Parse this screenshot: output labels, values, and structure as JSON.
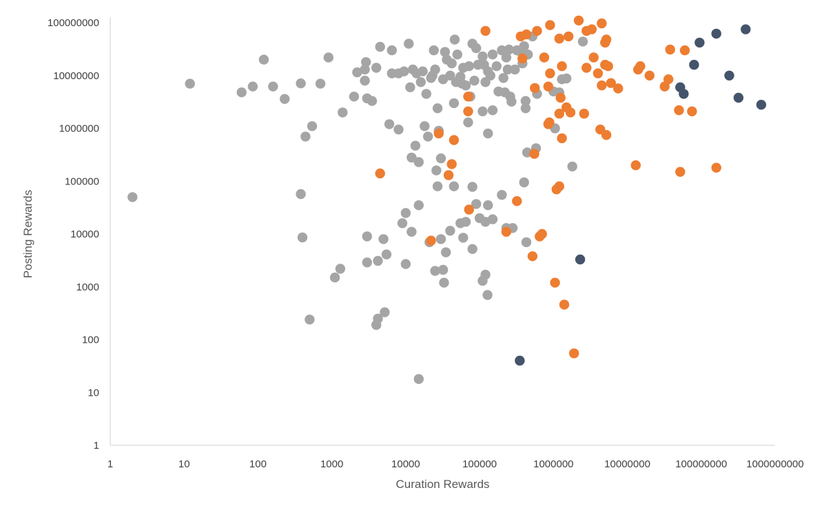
{
  "chart_data": {
    "type": "scatter",
    "title": "",
    "xlabel": "Curation Rewards",
    "ylabel": "Posting Rewards",
    "x_scale": "log",
    "y_scale": "log",
    "xlim": [
      1,
      1000000000
    ],
    "ylim": [
      1,
      100000000
    ],
    "x_ticks": [
      "1",
      "10",
      "100",
      "1000",
      "10000",
      "100000",
      "1000000",
      "10000000",
      "100000000",
      "1000000000"
    ],
    "y_ticks": [
      "1",
      "10",
      "100",
      "1000",
      "10000",
      "100000",
      "1000000",
      "10000000",
      "100000000"
    ],
    "grid": false,
    "legend": "none",
    "series": [
      {
        "color": "#a5a5a5",
        "points": [
          [
            2,
            50000
          ],
          [
            12,
            7000000
          ],
          [
            60,
            4800000
          ],
          [
            85,
            6200000
          ],
          [
            120,
            20000000
          ],
          [
            160,
            6200000
          ],
          [
            230,
            3600000
          ],
          [
            380,
            7100000
          ],
          [
            380,
            57000
          ],
          [
            400,
            8600
          ],
          [
            440,
            700000
          ],
          [
            540,
            1100000
          ],
          [
            700,
            7000000
          ],
          [
            900,
            22000000
          ],
          [
            1400,
            2000000
          ],
          [
            2000,
            4000000
          ],
          [
            2200,
            11500000
          ],
          [
            2800,
            8000000
          ],
          [
            2800,
            13000000
          ],
          [
            2900,
            18000000
          ],
          [
            3000,
            3700000
          ],
          [
            3500,
            3300000
          ],
          [
            4000,
            14000000
          ],
          [
            4500,
            35000000
          ],
          [
            6000,
            1200000
          ],
          [
            6500,
            30000000
          ],
          [
            6500,
            11000000
          ],
          [
            8000,
            950000
          ],
          [
            8000,
            11000000
          ],
          [
            9500,
            12000000
          ],
          [
            11000,
            40000000
          ],
          [
            11500,
            6000000
          ],
          [
            12000,
            280000
          ],
          [
            12500,
            13000000
          ],
          [
            13500,
            470000
          ],
          [
            14000,
            11000000
          ],
          [
            15000,
            230000
          ],
          [
            16000,
            7500000
          ],
          [
            17000,
            12000000
          ],
          [
            18000,
            1100000
          ],
          [
            19000,
            4500000
          ],
          [
            20000,
            700000
          ],
          [
            22000,
            9000000
          ],
          [
            23000,
            10000000
          ],
          [
            24000,
            30000000
          ],
          [
            25000,
            13000000
          ],
          [
            26000,
            160000
          ],
          [
            27000,
            2400000
          ],
          [
            28000,
            900000
          ],
          [
            30000,
            270000
          ],
          [
            32000,
            8500000
          ],
          [
            34000,
            28000000
          ],
          [
            36000,
            20000000
          ],
          [
            40000,
            10000000
          ],
          [
            42000,
            17000000
          ],
          [
            45000,
            3000000
          ],
          [
            46000,
            48000000
          ],
          [
            48000,
            7500000
          ],
          [
            50000,
            25000000
          ],
          [
            55000,
            9500000
          ],
          [
            58000,
            7000000
          ],
          [
            60000,
            14000000
          ],
          [
            65000,
            6500000
          ],
          [
            70000,
            1300000
          ],
          [
            72000,
            15000000
          ],
          [
            75000,
            4000000
          ],
          [
            80000,
            40000000
          ],
          [
            85000,
            8000000
          ],
          [
            90000,
            33000000
          ],
          [
            95000,
            16000000
          ],
          [
            110000,
            23000000
          ],
          [
            110000,
            2100000
          ],
          [
            115000,
            16000000
          ],
          [
            120000,
            7500000
          ],
          [
            130000,
            12000000
          ],
          [
            130000,
            800000
          ],
          [
            140000,
            10000000
          ],
          [
            150000,
            2200000
          ],
          [
            150000,
            25000000
          ],
          [
            170000,
            15000000
          ],
          [
            180000,
            5000000
          ],
          [
            200000,
            30000000
          ],
          [
            210000,
            9000000
          ],
          [
            220000,
            4800000
          ],
          [
            230000,
            22000000
          ],
          [
            240000,
            13000000
          ],
          [
            250000,
            31000000
          ],
          [
            260000,
            4000000
          ],
          [
            270000,
            3200000
          ],
          [
            300000,
            13000000
          ],
          [
            320000,
            30000000
          ],
          [
            350000,
            29000000
          ],
          [
            380000,
            17000000
          ],
          [
            400000,
            36000000
          ],
          [
            420000,
            3300000
          ],
          [
            420000,
            2400000
          ],
          [
            440000,
            350000
          ],
          [
            450000,
            25000000
          ],
          [
            520000,
            55000000
          ],
          [
            580000,
            420000
          ],
          [
            600000,
            4500000
          ],
          [
            1000000,
            5000000
          ],
          [
            1050000,
            1000000
          ],
          [
            1200000,
            4800000
          ],
          [
            1300000,
            8500000
          ],
          [
            1500000,
            8800000
          ],
          [
            1800000,
            190000
          ],
          [
            2500000,
            44000000
          ],
          [
            400000,
            95000
          ],
          [
            15000,
            35000
          ],
          [
            9000,
            16000
          ],
          [
            10000,
            25000
          ],
          [
            12000,
            11000
          ],
          [
            21000,
            7000
          ],
          [
            30000,
            8000
          ],
          [
            40000,
            11500
          ],
          [
            45000,
            80000
          ],
          [
            55000,
            16000
          ],
          [
            60000,
            8500
          ],
          [
            65000,
            17000
          ],
          [
            80000,
            78000
          ],
          [
            90000,
            37000
          ],
          [
            100000,
            20000
          ],
          [
            120000,
            17000
          ],
          [
            130000,
            35000
          ],
          [
            150000,
            19000
          ],
          [
            200000,
            55000
          ],
          [
            230000,
            13000
          ],
          [
            280000,
            13000
          ],
          [
            430000,
            7000
          ],
          [
            3000,
            9000
          ],
          [
            5000,
            8000
          ],
          [
            3000,
            2900
          ],
          [
            4200,
            3100
          ],
          [
            5500,
            4100
          ],
          [
            10000,
            2700
          ],
          [
            25000,
            2000
          ],
          [
            35000,
            4500
          ],
          [
            32000,
            2100
          ],
          [
            27000,
            80000
          ],
          [
            80000,
            5200
          ],
          [
            110000,
            1300
          ],
          [
            120000,
            1700
          ],
          [
            128000,
            700
          ],
          [
            33000,
            1200
          ],
          [
            1300,
            2200
          ],
          [
            1100,
            1500
          ],
          [
            500,
            240
          ],
          [
            4000,
            190
          ],
          [
            4200,
            250
          ],
          [
            5200,
            330
          ],
          [
            15000,
            18
          ]
        ]
      },
      {
        "color": "#ed7d31",
        "points": [
          [
            120000,
            70000000
          ],
          [
            360000,
            55000000
          ],
          [
            430000,
            60000000
          ],
          [
            600000,
            70000000
          ],
          [
            900000,
            90000000
          ],
          [
            1200000,
            50000000
          ],
          [
            1600000,
            55000000
          ],
          [
            2200000,
            110000000
          ],
          [
            2800000,
            70000000
          ],
          [
            3300000,
            75000000
          ],
          [
            4500000,
            97000000
          ],
          [
            5000000,
            42000000
          ],
          [
            5200000,
            48000000
          ],
          [
            750000,
            22000000
          ],
          [
            900000,
            11000000
          ],
          [
            1300000,
            15000000
          ],
          [
            850000,
            6200000
          ],
          [
            560000,
            5800000
          ],
          [
            380000,
            21000000
          ],
          [
            3500000,
            22000000
          ],
          [
            2800000,
            14000000
          ],
          [
            4000000,
            11000000
          ],
          [
            4500000,
            6500000
          ],
          [
            6000000,
            7200000
          ],
          [
            5000000,
            16000000
          ],
          [
            5500000,
            15000000
          ],
          [
            7500000,
            5700000
          ],
          [
            14000000,
            13000000
          ],
          [
            20000000,
            10000000
          ],
          [
            15000000,
            15000000
          ],
          [
            32000000,
            6200000
          ],
          [
            36000000,
            8500000
          ],
          [
            38000000,
            31000000
          ],
          [
            60000000,
            30000000
          ],
          [
            50000000,
            2200000
          ],
          [
            1250000,
            3800000
          ],
          [
            1500000,
            2500000
          ],
          [
            1700000,
            2000000
          ],
          [
            1200000,
            1900000
          ],
          [
            2600000,
            1900000
          ],
          [
            880000,
            1300000
          ],
          [
            850000,
            1200000
          ],
          [
            1300000,
            650000
          ],
          [
            4300000,
            950000
          ],
          [
            5200000,
            750000
          ],
          [
            13000000,
            200000
          ],
          [
            52000000,
            150000
          ],
          [
            160000000,
            180000
          ],
          [
            75000000,
            2100000
          ],
          [
            45000,
            600000
          ],
          [
            4500,
            140000
          ],
          [
            38000,
            130000
          ],
          [
            42000,
            210000
          ],
          [
            28000,
            800000
          ],
          [
            70000,
            2100000
          ],
          [
            70000,
            4000000
          ],
          [
            550000,
            330000
          ],
          [
            1200000,
            80000
          ],
          [
            1100000,
            70000
          ],
          [
            320000,
            42000
          ],
          [
            72000,
            29000
          ],
          [
            22000,
            7500
          ],
          [
            230000,
            11000
          ],
          [
            700000,
            10000
          ],
          [
            650000,
            9000
          ],
          [
            520000,
            3800
          ],
          [
            1050000,
            1200
          ],
          [
            1400000,
            460
          ],
          [
            1900000,
            55
          ]
        ]
      },
      {
        "color": "#44546a",
        "points": [
          [
            95000000,
            42000000
          ],
          [
            160000000,
            62000000
          ],
          [
            400000000,
            75000000
          ],
          [
            80000000,
            16000000
          ],
          [
            240000000,
            10000000
          ],
          [
            52000000,
            6000000
          ],
          [
            58000000,
            4500000
          ],
          [
            320000000,
            3800000
          ],
          [
            650000000,
            2800000
          ],
          [
            2300000,
            3300
          ],
          [
            350000,
            40
          ]
        ]
      }
    ]
  }
}
